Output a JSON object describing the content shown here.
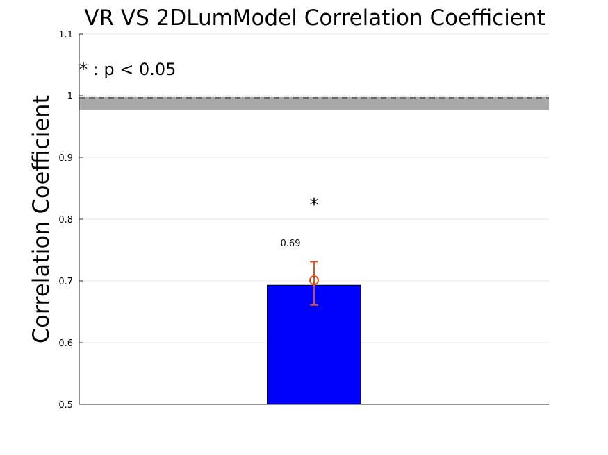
{
  "chart_data": {
    "type": "bar",
    "title": "VR VS 2DLumModel Correlation Coefficient",
    "xlabel": "",
    "ylabel": "Correlation Coefficient",
    "ylim": [
      0.5,
      1.1
    ],
    "yticks": [
      0.5,
      0.6,
      0.7,
      0.8,
      0.9,
      1,
      1.1
    ],
    "ytick_labels": [
      "0.5",
      "0.6",
      "0.7",
      "0.8",
      "0.9",
      "1",
      "1.1"
    ],
    "grid": true,
    "bars": [
      {
        "value": 0.693,
        "value_label": "0.69",
        "color": "#0000ff",
        "mean_marker": 0.701,
        "error_low": 0.661,
        "error_high": 0.731,
        "error_color": "#d95319",
        "significance": "*"
      }
    ],
    "reference_line": {
      "value": 0.996,
      "style": "dashed",
      "color": "#333333"
    },
    "reference_band": {
      "low": 0.977,
      "high": 0.998,
      "color": "#a9a9a9"
    },
    "annotation": "* : p < 0.05"
  }
}
